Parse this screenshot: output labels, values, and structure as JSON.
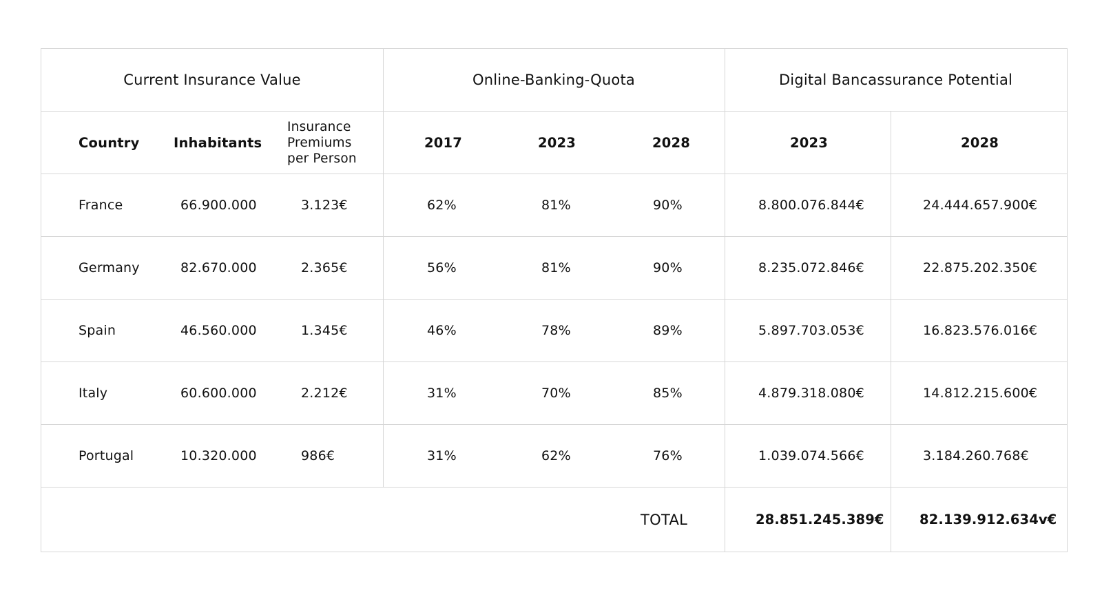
{
  "table": {
    "group_headers": [
      "Current Insurance Value",
      "Online-Banking-Quota",
      "Digital Bancassurance Potential"
    ],
    "columns": [
      "Country",
      "Inhabitants",
      "Insurance Premiums per Person",
      "2017",
      "2023",
      "2028",
      "2023",
      "2028"
    ],
    "rows": [
      {
        "country": "France",
        "inhabitants": "66.900.000",
        "premium": "3.123€",
        "q2017": "62%",
        "q2023": "81%",
        "q2028": "90%",
        "p2023": "8.800.076.844€",
        "p2028": "24.444.657.900€"
      },
      {
        "country": "Germany",
        "inhabitants": "82.670.000",
        "premium": "2.365€",
        "q2017": "56%",
        "q2023": "81%",
        "q2028": "90%",
        "p2023": "8.235.072.846€",
        "p2028": "22.875.202.350€"
      },
      {
        "country": "Spain",
        "inhabitants": "46.560.000",
        "premium": "1.345€",
        "q2017": "46%",
        "q2023": "78%",
        "q2028": "89%",
        "p2023": "5.897.703.053€",
        "p2028": "16.823.576.016€"
      },
      {
        "country": "Italy",
        "inhabitants": "60.600.000",
        "premium": "2.212€",
        "q2017": "31%",
        "q2023": "70%",
        "q2028": "85%",
        "p2023": "4.879.318.080€",
        "p2028": "14.812.215.600€"
      },
      {
        "country": "Portugal",
        "inhabitants": "10.320.000",
        "premium": "986€",
        "q2017": "31%",
        "q2023": "62%",
        "q2028": "76%",
        "p2023": "1.039.074.566€",
        "p2028": "3.184.260.768€"
      }
    ],
    "total": {
      "label": "TOTAL",
      "p2023": "28.851.245.389€",
      "p2028": "82.139.912.634v€"
    }
  },
  "chart_data": {
    "type": "table",
    "group_headers": [
      "Current Insurance Value",
      "Online-Banking-Quota",
      "Digital Bancassurance Potential"
    ],
    "columns": [
      "Country",
      "Inhabitants",
      "Insurance Premiums per Person",
      "2017",
      "2023",
      "2028",
      "2023",
      "2028"
    ],
    "rows": [
      [
        "France",
        "66.900.000",
        "3.123€",
        "62%",
        "81%",
        "90%",
        "8.800.076.844€",
        "24.444.657.900€"
      ],
      [
        "Germany",
        "82.670.000",
        "2.365€",
        "56%",
        "81%",
        "90%",
        "8.235.072.846€",
        "22.875.202.350€"
      ],
      [
        "Spain",
        "46.560.000",
        "1.345€",
        "46%",
        "78%",
        "89%",
        "5.897.703.053€",
        "16.823.576.016€"
      ],
      [
        "Italy",
        "60.600.000",
        "2.212€",
        "31%",
        "70%",
        "85%",
        "4.879.318.080€",
        "14.812.215.600€"
      ],
      [
        "Portugal",
        "10.320.000",
        "986€",
        "31%",
        "62%",
        "76%",
        "1.039.074.566€",
        "3.184.260.768€"
      ]
    ],
    "total": [
      "TOTAL",
      "28.851.245.389€",
      "82.139.912.634v€"
    ]
  }
}
